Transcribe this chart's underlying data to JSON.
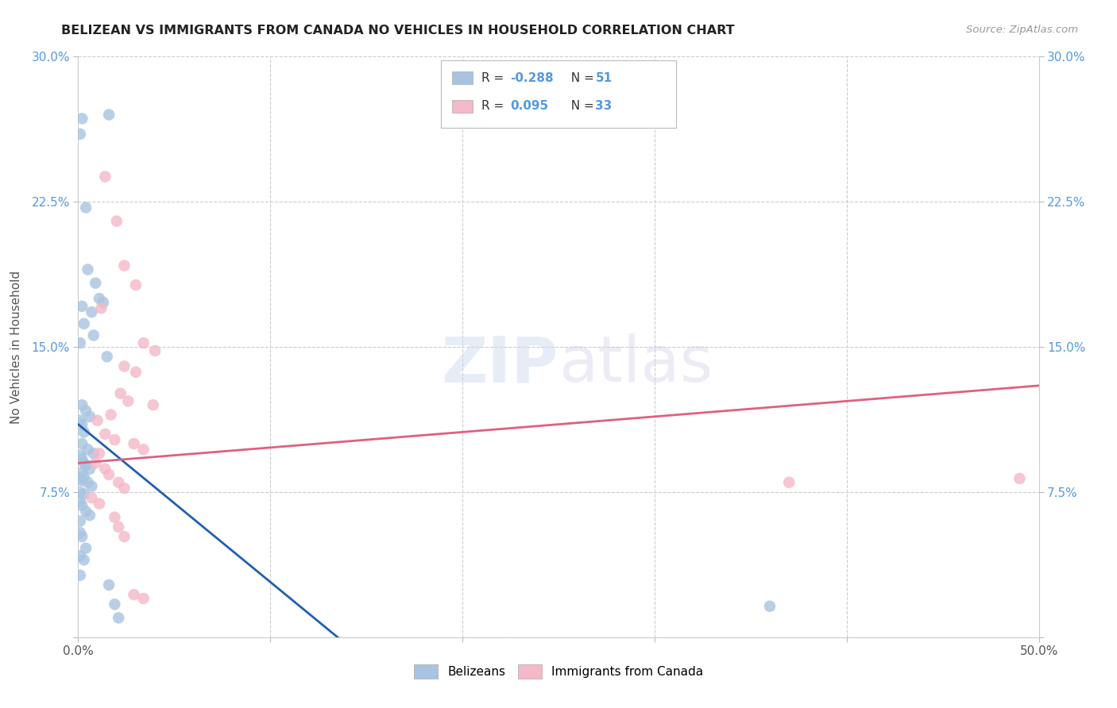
{
  "title": "BELIZEAN VS IMMIGRANTS FROM CANADA NO VEHICLES IN HOUSEHOLD CORRELATION CHART",
  "source": "Source: ZipAtlas.com",
  "ylabel": "No Vehicles in Household",
  "xlim": [
    0.0,
    0.5
  ],
  "ylim": [
    0.0,
    0.3
  ],
  "xticks": [
    0.0,
    0.1,
    0.2,
    0.3,
    0.4,
    0.5
  ],
  "yticks": [
    0.0,
    0.075,
    0.15,
    0.225,
    0.3
  ],
  "belizean_color": "#a8c4e0",
  "canada_color": "#f4b8c8",
  "belizean_line_color": "#2060b0",
  "canada_line_color": "#e06080",
  "belizean_line": [
    [
      0.0,
      0.11
    ],
    [
      0.135,
      0.0
    ]
  ],
  "belizean_line_dashed": [
    [
      0.135,
      0.0
    ],
    [
      0.5,
      -0.085
    ]
  ],
  "canada_line": [
    [
      0.0,
      0.09
    ],
    [
      0.5,
      0.13
    ]
  ],
  "belizean_points": [
    [
      0.002,
      0.268
    ],
    [
      0.001,
      0.26
    ],
    [
      0.016,
      0.27
    ],
    [
      0.004,
      0.222
    ],
    [
      0.005,
      0.19
    ],
    [
      0.009,
      0.183
    ],
    [
      0.011,
      0.175
    ],
    [
      0.013,
      0.173
    ],
    [
      0.002,
      0.171
    ],
    [
      0.007,
      0.168
    ],
    [
      0.003,
      0.162
    ],
    [
      0.008,
      0.156
    ],
    [
      0.001,
      0.152
    ],
    [
      0.015,
      0.145
    ],
    [
      0.002,
      0.12
    ],
    [
      0.004,
      0.117
    ],
    [
      0.006,
      0.114
    ],
    [
      0.001,
      0.112
    ],
    [
      0.002,
      0.11
    ],
    [
      0.003,
      0.106
    ],
    [
      0.002,
      0.1
    ],
    [
      0.005,
      0.097
    ],
    [
      0.008,
      0.095
    ],
    [
      0.001,
      0.094
    ],
    [
      0.002,
      0.092
    ],
    [
      0.003,
      0.09
    ],
    [
      0.004,
      0.089
    ],
    [
      0.006,
      0.087
    ],
    [
      0.002,
      0.085
    ],
    [
      0.003,
      0.083
    ],
    [
      0.001,
      0.082
    ],
    [
      0.002,
      0.081
    ],
    [
      0.005,
      0.08
    ],
    [
      0.007,
      0.078
    ],
    [
      0.001,
      0.075
    ],
    [
      0.003,
      0.074
    ],
    [
      0.001,
      0.07
    ],
    [
      0.002,
      0.068
    ],
    [
      0.004,
      0.065
    ],
    [
      0.006,
      0.063
    ],
    [
      0.001,
      0.06
    ],
    [
      0.001,
      0.054
    ],
    [
      0.002,
      0.052
    ],
    [
      0.004,
      0.046
    ],
    [
      0.001,
      0.042
    ],
    [
      0.003,
      0.04
    ],
    [
      0.001,
      0.032
    ],
    [
      0.016,
      0.027
    ],
    [
      0.019,
      0.017
    ],
    [
      0.021,
      0.01
    ],
    [
      0.36,
      0.016
    ]
  ],
  "canada_points": [
    [
      0.014,
      0.238
    ],
    [
      0.02,
      0.215
    ],
    [
      0.024,
      0.192
    ],
    [
      0.03,
      0.182
    ],
    [
      0.012,
      0.17
    ],
    [
      0.034,
      0.152
    ],
    [
      0.04,
      0.148
    ],
    [
      0.024,
      0.14
    ],
    [
      0.03,
      0.137
    ],
    [
      0.022,
      0.126
    ],
    [
      0.026,
      0.122
    ],
    [
      0.039,
      0.12
    ],
    [
      0.017,
      0.115
    ],
    [
      0.01,
      0.112
    ],
    [
      0.014,
      0.105
    ],
    [
      0.019,
      0.102
    ],
    [
      0.029,
      0.1
    ],
    [
      0.034,
      0.097
    ],
    [
      0.011,
      0.095
    ],
    [
      0.009,
      0.09
    ],
    [
      0.014,
      0.087
    ],
    [
      0.016,
      0.084
    ],
    [
      0.021,
      0.08
    ],
    [
      0.024,
      0.077
    ],
    [
      0.007,
      0.072
    ],
    [
      0.011,
      0.069
    ],
    [
      0.019,
      0.062
    ],
    [
      0.021,
      0.057
    ],
    [
      0.024,
      0.052
    ],
    [
      0.029,
      0.022
    ],
    [
      0.034,
      0.02
    ],
    [
      0.49,
      0.082
    ],
    [
      0.37,
      0.08
    ]
  ]
}
